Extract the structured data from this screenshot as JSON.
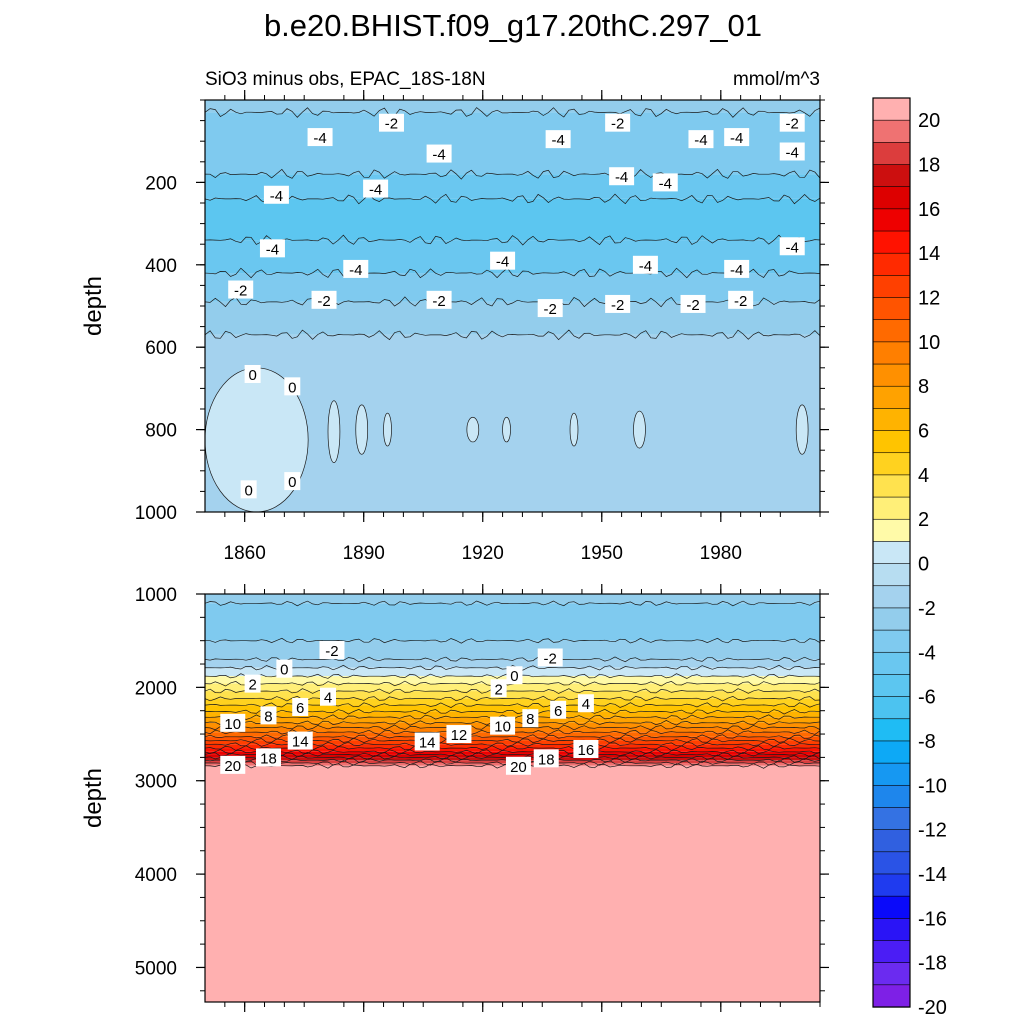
{
  "figure": {
    "title": "b.e20.BHIST.f09_g17.20thC.297_01",
    "subtitle": "SiO3 minus obs, EPAC_18S-18N",
    "units": "mmol/m^3"
  },
  "chart_data": [
    {
      "type": "heatmap",
      "panel": "upper",
      "xlabel": "",
      "ylabel": "depth",
      "xlim": [
        1850,
        2005
      ],
      "ylim": [
        1000,
        0
      ],
      "x_ticks": [
        "1860",
        "1890",
        "1920",
        "1950",
        "1980"
      ],
      "x_tick_values": [
        1860,
        1890,
        1920,
        1950,
        1980
      ],
      "y_ticks": [
        "200",
        "400",
        "600",
        "800",
        "1000"
      ],
      "y_tick_values": [
        200,
        400,
        600,
        800,
        1000
      ],
      "layers": [
        {
          "depth_top": 0,
          "depth_bottom": 30,
          "value": -2
        },
        {
          "depth_top": 30,
          "depth_bottom": 180,
          "value": -3
        },
        {
          "depth_top": 180,
          "depth_bottom": 240,
          "value": -4
        },
        {
          "depth_top": 240,
          "depth_bottom": 340,
          "value": -5
        },
        {
          "depth_top": 340,
          "depth_bottom": 420,
          "value": -4
        },
        {
          "depth_top": 420,
          "depth_bottom": 490,
          "value": -3
        },
        {
          "depth_top": 490,
          "depth_bottom": 570,
          "value": -2
        },
        {
          "depth_top": 570,
          "depth_bottom": 1000,
          "value": -1
        }
      ],
      "zero_patches": [
        {
          "x_start": 1850,
          "x_end": 1876,
          "depth_top": 650,
          "depth_bottom": 1000
        },
        {
          "x_start": 1881,
          "x_end": 1884,
          "depth_top": 730,
          "depth_bottom": 880
        },
        {
          "x_start": 1888,
          "x_end": 1891,
          "depth_top": 740,
          "depth_bottom": 860
        },
        {
          "x_start": 1895,
          "x_end": 1897,
          "depth_top": 760,
          "depth_bottom": 840
        },
        {
          "x_start": 1916,
          "x_end": 1919,
          "depth_top": 770,
          "depth_bottom": 830
        },
        {
          "x_start": 1925,
          "x_end": 1927,
          "depth_top": 770,
          "depth_bottom": 830
        },
        {
          "x_start": 1942,
          "x_end": 1944,
          "depth_top": 760,
          "depth_bottom": 840
        },
        {
          "x_start": 1958,
          "x_end": 1961,
          "depth_top": 755,
          "depth_bottom": 845
        },
        {
          "x_start": 1999,
          "x_end": 2002,
          "depth_top": 740,
          "depth_bottom": 860
        }
      ],
      "contour_labels": [
        {
          "text": "-2",
          "x": 1897,
          "depth": 55
        },
        {
          "text": "-2",
          "x": 1954,
          "depth": 55
        },
        {
          "text": "-2",
          "x": 1998,
          "depth": 55
        },
        {
          "text": "-4",
          "x": 1879,
          "depth": 90
        },
        {
          "text": "-4",
          "x": 1909,
          "depth": 130
        },
        {
          "text": "-4",
          "x": 1939,
          "depth": 95
        },
        {
          "text": "-4",
          "x": 1975,
          "depth": 95
        },
        {
          "text": "-4",
          "x": 1984,
          "depth": 90
        },
        {
          "text": "-4",
          "x": 1998,
          "depth": 125
        },
        {
          "text": "-4",
          "x": 1893,
          "depth": 215
        },
        {
          "text": "-4",
          "x": 1868,
          "depth": 230
        },
        {
          "text": "-4",
          "x": 1955,
          "depth": 185
        },
        {
          "text": "-4",
          "x": 1966,
          "depth": 200
        },
        {
          "text": "-4",
          "x": 1867,
          "depth": 360
        },
        {
          "text": "-4",
          "x": 1998,
          "depth": 355
        },
        {
          "text": "-4",
          "x": 1888,
          "depth": 410
        },
        {
          "text": "-4",
          "x": 1925,
          "depth": 390
        },
        {
          "text": "-4",
          "x": 1961,
          "depth": 400
        },
        {
          "text": "-4",
          "x": 1984,
          "depth": 410
        },
        {
          "text": "-2",
          "x": 1859,
          "depth": 460
        },
        {
          "text": "-2",
          "x": 1880,
          "depth": 485
        },
        {
          "text": "-2",
          "x": 1909,
          "depth": 485
        },
        {
          "text": "-2",
          "x": 1937,
          "depth": 505
        },
        {
          "text": "-2",
          "x": 1954,
          "depth": 495
        },
        {
          "text": "-2",
          "x": 1973,
          "depth": 495
        },
        {
          "text": "-2",
          "x": 1985,
          "depth": 485
        },
        {
          "text": "0",
          "x": 1862,
          "depth": 665
        },
        {
          "text": "0",
          "x": 1872,
          "depth": 695
        },
        {
          "text": "0",
          "x": 1861,
          "depth": 945
        },
        {
          "text": "0",
          "x": 1872,
          "depth": 925
        }
      ]
    },
    {
      "type": "heatmap",
      "panel": "lower",
      "xlabel": "",
      "ylabel": "depth",
      "xlim": [
        1850,
        2005
      ],
      "ylim": [
        5370,
        1000
      ],
      "x_tick_values": [
        1860,
        1890,
        1920,
        1950,
        1980
      ],
      "y_ticks": [
        "1000",
        "2000",
        "3000",
        "4000",
        "5000"
      ],
      "y_tick_values": [
        1000,
        2000,
        3000,
        4000,
        5000
      ],
      "layers": [
        {
          "depth_top": 1000,
          "depth_bottom": 1100,
          "value": -2
        },
        {
          "depth_top": 1100,
          "depth_bottom": 1500,
          "value": -3
        },
        {
          "depth_top": 1500,
          "depth_bottom": 1700,
          "value": -2
        },
        {
          "depth_top": 1700,
          "depth_bottom": 1790,
          "value": -1
        },
        {
          "depth_top": 1790,
          "depth_bottom": 1880,
          "value": 0.5
        },
        {
          "depth_top": 1880,
          "depth_bottom": 1960,
          "value": 1.5
        },
        {
          "depth_top": 1960,
          "depth_bottom": 2040,
          "value": 2.5
        },
        {
          "depth_top": 2040,
          "depth_bottom": 2120,
          "value": 3.5
        },
        {
          "depth_top": 2120,
          "depth_bottom": 2190,
          "value": 4.5
        },
        {
          "depth_top": 2190,
          "depth_bottom": 2260,
          "value": 5.5
        },
        {
          "depth_top": 2260,
          "depth_bottom": 2320,
          "value": 6.5
        },
        {
          "depth_top": 2320,
          "depth_bottom": 2380,
          "value": 7.5
        },
        {
          "depth_top": 2380,
          "depth_bottom": 2430,
          "value": 8.5
        },
        {
          "depth_top": 2430,
          "depth_bottom": 2480,
          "value": 9.5
        },
        {
          "depth_top": 2480,
          "depth_bottom": 2530,
          "value": 10.5
        },
        {
          "depth_top": 2530,
          "depth_bottom": 2570,
          "value": 11.5
        },
        {
          "depth_top": 2570,
          "depth_bottom": 2610,
          "value": 12.5
        },
        {
          "depth_top": 2610,
          "depth_bottom": 2650,
          "value": 13.5
        },
        {
          "depth_top": 2650,
          "depth_bottom": 2690,
          "value": 14.5
        },
        {
          "depth_top": 2690,
          "depth_bottom": 2720,
          "value": 15.5
        },
        {
          "depth_top": 2720,
          "depth_bottom": 2750,
          "value": 16.5
        },
        {
          "depth_top": 2750,
          "depth_bottom": 2780,
          "value": 17.5
        },
        {
          "depth_top": 2780,
          "depth_bottom": 2810,
          "value": 18.5
        },
        {
          "depth_top": 2810,
          "depth_bottom": 2840,
          "value": 19.5
        },
        {
          "depth_top": 2840,
          "depth_bottom": 5370,
          "value": 21
        }
      ],
      "contour_labels": [
        {
          "text": "-2",
          "x": 1882,
          "depth": 1600
        },
        {
          "text": "-2",
          "x": 1937,
          "depth": 1680
        },
        {
          "text": "0",
          "x": 1870,
          "depth": 1800
        },
        {
          "text": "0",
          "x": 1928,
          "depth": 1870
        },
        {
          "text": "2",
          "x": 1862,
          "depth": 1960
        },
        {
          "text": "2",
          "x": 1924,
          "depth": 2010
        },
        {
          "text": "4",
          "x": 1881,
          "depth": 2100
        },
        {
          "text": "4",
          "x": 1946,
          "depth": 2170
        },
        {
          "text": "6",
          "x": 1874,
          "depth": 2210
        },
        {
          "text": "6",
          "x": 1939,
          "depth": 2240
        },
        {
          "text": "8",
          "x": 1866,
          "depth": 2300
        },
        {
          "text": "8",
          "x": 1932,
          "depth": 2330
        },
        {
          "text": "10",
          "x": 1857,
          "depth": 2380
        },
        {
          "text": "10",
          "x": 1925,
          "depth": 2410
        },
        {
          "text": "12",
          "x": 1914,
          "depth": 2500
        },
        {
          "text": "14",
          "x": 1874,
          "depth": 2570
        },
        {
          "text": "14",
          "x": 1906,
          "depth": 2580
        },
        {
          "text": "16",
          "x": 1946,
          "depth": 2660
        },
        {
          "text": "18",
          "x": 1866,
          "depth": 2750
        },
        {
          "text": "18",
          "x": 1936,
          "depth": 2760
        },
        {
          "text": "20",
          "x": 1857,
          "depth": 2830
        },
        {
          "text": "20",
          "x": 1929,
          "depth": 2840
        }
      ]
    }
  ],
  "colorbar": {
    "levels": [
      -20,
      -19,
      -18,
      -17,
      -16,
      -15,
      -14,
      -13,
      -12,
      -11,
      -10,
      -9,
      -8,
      -7,
      -6,
      -5,
      -4,
      -3,
      -2,
      -1,
      0,
      1,
      2,
      3,
      4,
      5,
      6,
      7,
      8,
      9,
      10,
      11,
      12,
      13,
      14,
      15,
      16,
      17,
      18,
      19,
      20
    ],
    "tick_labels": [
      "20",
      "18",
      "16",
      "14",
      "12",
      "10",
      "8",
      "6",
      "4",
      "2",
      "0",
      "-2",
      "-4",
      "-6",
      "-8",
      "-10",
      "-12",
      "-14",
      "-16",
      "-18",
      "-20"
    ],
    "colors": [
      "#7e20e6",
      "#6b2bf0",
      "#4b1df5",
      "#2a14f6",
      "#0a0afa",
      "#1f3bef",
      "#2a53e6",
      "#3060e0",
      "#3472e3",
      "#1e86ec",
      "#1698f2",
      "#0da9f6",
      "#1fbcf4",
      "#4cc3f0",
      "#5cc6f0",
      "#6ac7f0",
      "#7fcaef",
      "#93cdec",
      "#a4d2ee",
      "#b7ddf1",
      "#c9e7f6",
      "#fffaa8",
      "#ffef78",
      "#ffe24e",
      "#ffd21f",
      "#ffc400",
      "#ffb300",
      "#ffa200",
      "#ff9000",
      "#ff7f00",
      "#ff6a00",
      "#ff5400",
      "#ff4000",
      "#ff2a00",
      "#ff1200",
      "#ee0000",
      "#dd0000",
      "#cc0f0f",
      "#dc3d3d",
      "#ef7272",
      "#ffb0b0"
    ]
  }
}
